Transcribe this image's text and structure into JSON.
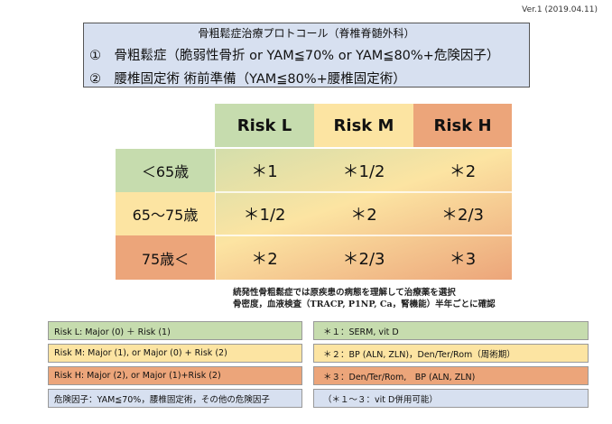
{
  "version": "Ver.1 (2019.04.11)",
  "title": {
    "heading": "骨粗鬆症治療プロトコール（脊椎脊髄外科）",
    "line1": "①　骨粗鬆症（脆弱性骨折 or YAM≦70% or YAM≦80%+危険因子）",
    "line2": "②　腰椎固定術 術前準備（YAM≦80%+腰椎固定術）"
  },
  "table": {
    "columns": [
      "Risk L",
      "Risk M",
      "Risk H"
    ],
    "rows": [
      {
        "label": "＜65歳",
        "values": [
          "＊1",
          "＊1/2",
          "＊2"
        ]
      },
      {
        "label": "65〜75歳",
        "values": [
          "＊1/2",
          "＊2",
          "＊2/3"
        ]
      },
      {
        "label": "75歳＜",
        "values": [
          "＊2",
          "＊2/3",
          "＊3"
        ]
      }
    ]
  },
  "note": {
    "line1": "続発性骨粗鬆症では原疾患の病態を理解して治療薬を選択",
    "line2": "骨密度，血液検査（TRACP, P1NP, Ca，腎機能）半年ごとに確認"
  },
  "legend_left": [
    "Risk L: Major (0) ＋ Risk (1)",
    "Risk M: Major (1), or Major (0) + Risk (2)",
    "Risk H: Major (2), or Major (1)+Risk (2)",
    "危険因子：YAM≦70%，腰椎固定術，その他の危険因子"
  ],
  "legend_right": [
    "＊１：SERM, vit D",
    "＊２：BP (ALN, ZLN)，Den/Ter/Rom（周術期）",
    "＊３：Den/Ter/Rom,　BP (ALN, ZLN)",
    "（＊１〜３：vit D併用可能）"
  ],
  "colors": {
    "green": "#c6dcae",
    "yellow": "#fce4a2",
    "orange": "#eca57a",
    "blue_gray": "#d7e0f0",
    "white": "#ffffff"
  }
}
